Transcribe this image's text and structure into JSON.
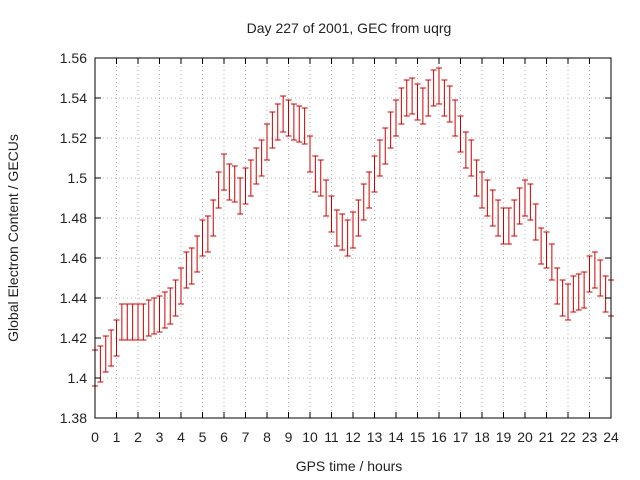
{
  "chart_data": {
    "type": "scatter",
    "title": "Day 227 of 2001, GEC from uqrg",
    "xlabel": "GPS time / hours",
    "ylabel": "Global Electron Content / GECUs",
    "xlim": [
      0,
      24
    ],
    "ylim": [
      1.38,
      1.56
    ],
    "xticks": [
      0,
      1,
      2,
      3,
      4,
      5,
      6,
      7,
      8,
      9,
      10,
      11,
      12,
      13,
      14,
      15,
      16,
      17,
      18,
      19,
      20,
      21,
      22,
      23,
      24
    ],
    "yticks": [
      1.38,
      1.4,
      1.42,
      1.44,
      1.46,
      1.48,
      1.5,
      1.52,
      1.54,
      1.56
    ],
    "grid": true,
    "errorbar_halfwidth": 0.009,
    "color": "#cc0000",
    "points": [
      [
        0.0,
        1.405
      ],
      [
        0.25,
        1.407
      ],
      [
        0.5,
        1.412
      ],
      [
        0.75,
        1.415
      ],
      [
        1.0,
        1.42
      ],
      [
        1.25,
        1.428
      ],
      [
        1.5,
        1.428
      ],
      [
        1.75,
        1.428
      ],
      [
        2.0,
        1.428
      ],
      [
        2.25,
        1.428
      ],
      [
        2.5,
        1.43
      ],
      [
        2.75,
        1.431
      ],
      [
        3.0,
        1.432
      ],
      [
        3.25,
        1.434
      ],
      [
        3.5,
        1.436
      ],
      [
        3.75,
        1.44
      ],
      [
        4.0,
        1.446
      ],
      [
        4.25,
        1.454
      ],
      [
        4.5,
        1.456
      ],
      [
        4.75,
        1.462
      ],
      [
        5.0,
        1.47
      ],
      [
        5.25,
        1.472
      ],
      [
        5.5,
        1.48
      ],
      [
        5.75,
        1.494
      ],
      [
        6.0,
        1.503
      ],
      [
        6.25,
        1.498
      ],
      [
        6.5,
        1.497
      ],
      [
        6.75,
        1.491
      ],
      [
        7.0,
        1.496
      ],
      [
        7.25,
        1.5
      ],
      [
        7.5,
        1.506
      ],
      [
        7.75,
        1.51
      ],
      [
        8.0,
        1.518
      ],
      [
        8.25,
        1.524
      ],
      [
        8.5,
        1.528
      ],
      [
        8.75,
        1.532
      ],
      [
        9.0,
        1.53
      ],
      [
        9.25,
        1.528
      ],
      [
        9.5,
        1.527
      ],
      [
        9.75,
        1.526
      ],
      [
        10.0,
        1.512
      ],
      [
        10.25,
        1.502
      ],
      [
        10.5,
        1.5
      ],
      [
        10.75,
        1.49
      ],
      [
        11.0,
        1.482
      ],
      [
        11.25,
        1.475
      ],
      [
        11.5,
        1.473
      ],
      [
        11.75,
        1.47
      ],
      [
        12.0,
        1.474
      ],
      [
        12.25,
        1.48
      ],
      [
        12.5,
        1.488
      ],
      [
        12.75,
        1.494
      ],
      [
        13.0,
        1.502
      ],
      [
        13.25,
        1.51
      ],
      [
        13.5,
        1.516
      ],
      [
        13.75,
        1.524
      ],
      [
        14.0,
        1.53
      ],
      [
        14.25,
        1.536
      ],
      [
        14.5,
        1.54
      ],
      [
        14.75,
        1.541
      ],
      [
        15.0,
        1.538
      ],
      [
        15.25,
        1.536
      ],
      [
        15.5,
        1.54
      ],
      [
        15.75,
        1.545
      ],
      [
        16.0,
        1.546
      ],
      [
        16.25,
        1.54
      ],
      [
        16.5,
        1.537
      ],
      [
        16.75,
        1.53
      ],
      [
        17.0,
        1.522
      ],
      [
        17.25,
        1.514
      ],
      [
        17.5,
        1.51
      ],
      [
        17.75,
        1.5
      ],
      [
        18.0,
        1.494
      ],
      [
        18.25,
        1.49
      ],
      [
        18.5,
        1.485
      ],
      [
        18.75,
        1.48
      ],
      [
        19.0,
        1.476
      ],
      [
        19.25,
        1.476
      ],
      [
        19.5,
        1.48
      ],
      [
        19.75,
        1.486
      ],
      [
        20.0,
        1.49
      ],
      [
        20.25,
        1.488
      ],
      [
        20.5,
        1.478
      ],
      [
        20.75,
        1.466
      ],
      [
        21.0,
        1.464
      ],
      [
        21.25,
        1.458
      ],
      [
        21.5,
        1.446
      ],
      [
        21.75,
        1.44
      ],
      [
        22.0,
        1.438
      ],
      [
        22.25,
        1.442
      ],
      [
        22.5,
        1.443
      ],
      [
        22.75,
        1.444
      ],
      [
        23.0,
        1.452
      ],
      [
        23.25,
        1.454
      ],
      [
        23.5,
        1.45
      ],
      [
        23.75,
        1.442
      ],
      [
        24.0,
        1.44
      ]
    ]
  }
}
